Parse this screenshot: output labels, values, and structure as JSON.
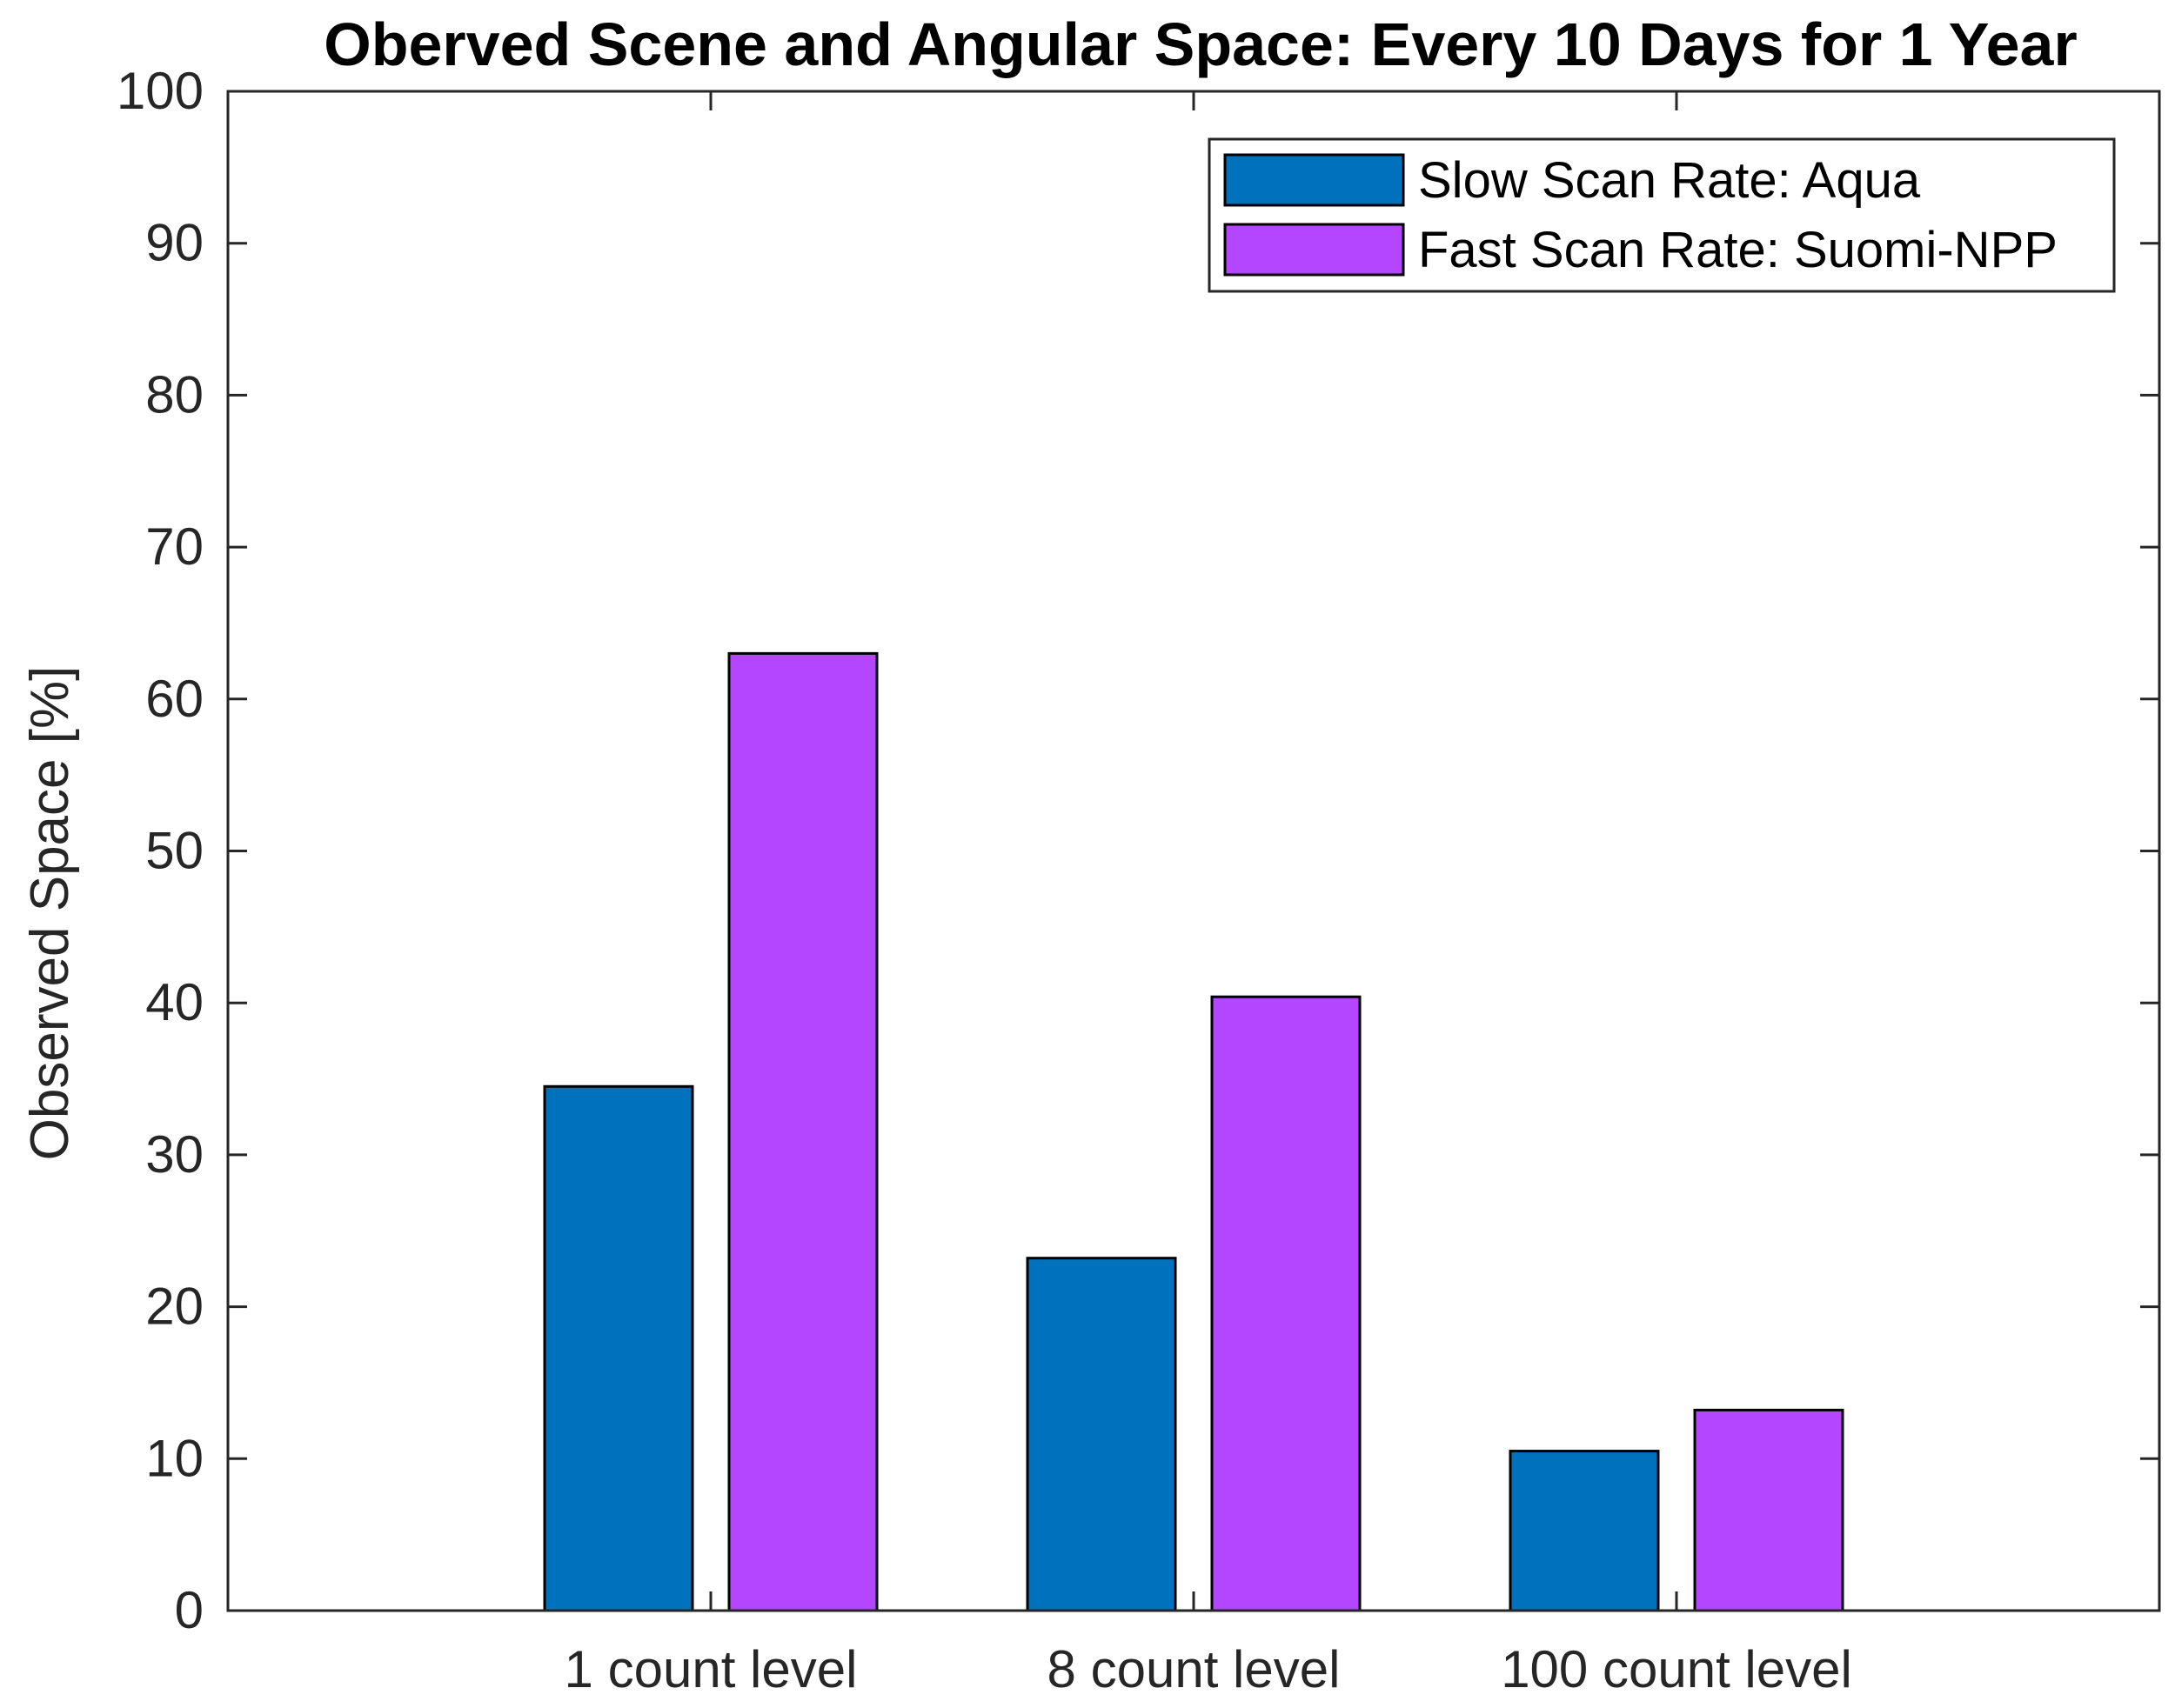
{
  "chart_data": {
    "type": "bar",
    "title": "Oberved Scene and Angular Space: Every 10 Days for 1 Year",
    "ylabel": "Observed Space [%]",
    "xlabel": "",
    "ylim": [
      0,
      100
    ],
    "yticks": [
      "0",
      "10",
      "20",
      "30",
      "40",
      "50",
      "60",
      "70",
      "80",
      "90",
      "100"
    ],
    "categories": [
      "1 count level",
      "8 count level",
      "100 count level"
    ],
    "series": [
      {
        "name": "Slow Scan Rate: Aqua",
        "color": "#0072BD",
        "values": [
          34.5,
          23.2,
          10.5
        ]
      },
      {
        "name": "Fast Scan Rate: Suomi-NPP",
        "color": "#B546FF",
        "values": [
          63.0,
          40.4,
          13.2
        ]
      }
    ],
    "legend_position": "top-right",
    "grid": false
  }
}
